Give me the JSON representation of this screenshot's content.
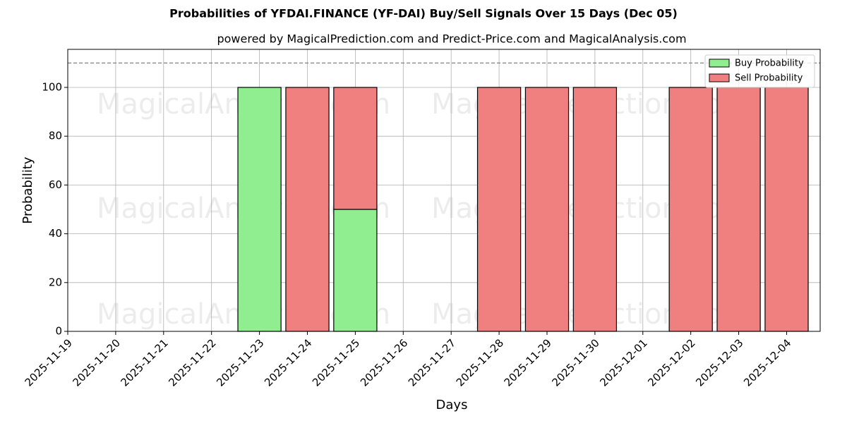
{
  "chart_data": {
    "type": "stacked_bar",
    "title": "Probabilities of YFDAI.FINANCE (YF-DAI) Buy/Sell Signals Over 15 Days (Dec 05)",
    "subtitle": "powered by MagicalPrediction.com and Predict-Price.com and MagicalAnalysis.com",
    "x_label": "Days",
    "y_label": "Probability",
    "categories": [
      "2025-11-19",
      "2025-11-20",
      "2025-11-21",
      "2025-11-22",
      "2025-11-23",
      "2025-11-24",
      "2025-11-25",
      "2025-11-26",
      "2025-11-27",
      "2025-11-28",
      "2025-11-29",
      "2025-11-30",
      "2025-12-01",
      "2025-12-02",
      "2025-12-03",
      "2025-12-04"
    ],
    "series": [
      {
        "name": "Buy Probability",
        "color": "#90ee90",
        "values": [
          null,
          null,
          null,
          null,
          100,
          0,
          50,
          null,
          null,
          0,
          0,
          0,
          null,
          0,
          0,
          0
        ]
      },
      {
        "name": "Sell Probability",
        "color": "#f08080",
        "values": [
          null,
          null,
          null,
          null,
          0,
          100,
          50,
          null,
          null,
          100,
          100,
          100,
          null,
          100,
          100,
          100
        ]
      }
    ],
    "xlim": [
      0,
      15.7
    ],
    "ylim": [
      0,
      115.6
    ],
    "yticks": [
      0,
      20,
      40,
      60,
      80,
      100
    ],
    "hline": 110,
    "grid": true,
    "legend": "upper right",
    "watermarks": [
      "MagicalAnalysis.com",
      "MagicalPrediction.com"
    ]
  }
}
